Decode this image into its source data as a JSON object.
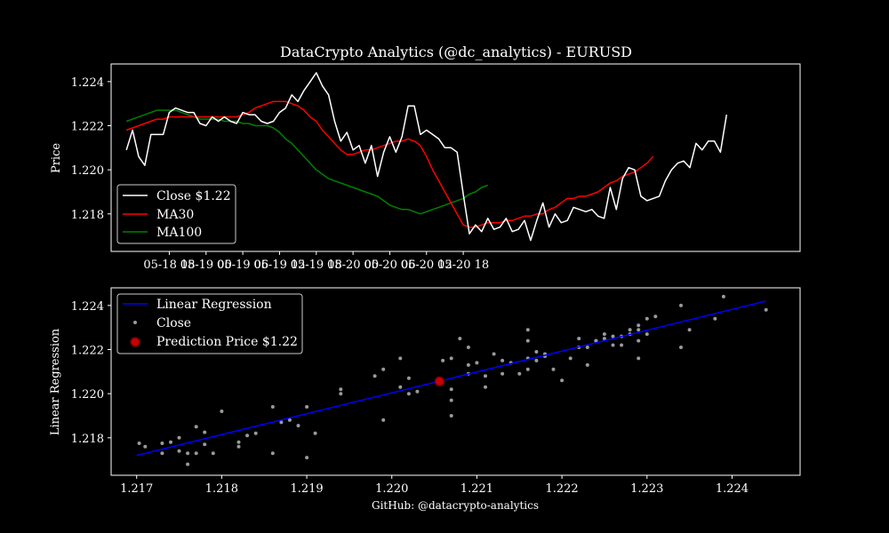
{
  "title": "DataCrypto Analytics (@dc_analytics) - EURUSD",
  "footer": "GitHub: @datacrypto-analytics",
  "colors": {
    "background": "#000000",
    "axes": "#ffffff",
    "close": "#ffffff",
    "ma30": "#ff0000",
    "ma100": "#008000",
    "regression": "#0000ff",
    "scatter": "#9a9a9a",
    "prediction": "#cc0000"
  },
  "chart_data": [
    {
      "type": "line",
      "ylabel": "Price",
      "xlabel": "",
      "x_tick_labels": [
        "05-18 18",
        "05-19 00",
        "05-19 06",
        "05-19 12",
        "05-19 18",
        "05-20 00",
        "05-20 06",
        "05-20 12",
        "05-20 18"
      ],
      "y_tick_labels": [
        "1.218",
        "1.220",
        "1.222",
        "1.224"
      ],
      "y_ticks": [
        1.218,
        1.22,
        1.222,
        1.224
      ],
      "xlim": [
        -9.5,
        103
      ],
      "ylim": [
        1.2163,
        1.2248
      ],
      "x_unit": "hours since 05-18 18:00",
      "grid": false,
      "legend_position": "lower-left",
      "legend": [
        "Close $1.22",
        "MA30",
        "MA100"
      ],
      "series": [
        {
          "name": "Close $1.22",
          "start_hour": -7,
          "step_hours": 1,
          "values": [
            1.2209,
            1.2218,
            1.2206,
            1.2202,
            1.2216,
            1.2216,
            1.2216,
            1.2226,
            1.2228,
            1.2227,
            1.2226,
            1.2226,
            1.2221,
            1.222,
            1.2224,
            1.2222,
            1.2224,
            1.2222,
            1.2221,
            1.2226,
            1.2225,
            1.2225,
            1.2222,
            1.2221,
            1.2222,
            1.2226,
            1.2228,
            1.2234,
            1.2231,
            1.2236,
            1.224,
            1.2244,
            1.2238,
            1.2234,
            1.2222,
            1.2213,
            1.2217,
            1.2209,
            1.2211,
            1.2203,
            1.2211,
            1.2197,
            1.2208,
            1.2215,
            1.2208,
            1.2215,
            1.2229,
            1.2229,
            1.2216,
            1.2218,
            1.2216,
            1.2214,
            1.221,
            1.221,
            1.2208,
            1.2189,
            1.2171,
            1.2175,
            1.2172,
            1.2178,
            1.2173,
            1.2174,
            1.2178,
            1.2172,
            1.2173,
            1.2177,
            1.2168,
            1.2177,
            1.2185,
            1.2174,
            1.218,
            1.2176,
            1.2177,
            1.2183,
            1.2182,
            1.2181,
            1.2182,
            1.2179,
            1.2178,
            1.2192,
            1.2182,
            1.2196,
            1.2201,
            1.22,
            1.2188,
            1.2186,
            1.2187,
            1.2188,
            1.2195,
            1.22,
            1.2203,
            1.2204,
            1.2201,
            1.2212,
            1.2209,
            1.2213,
            1.2213,
            1.2208,
            1.2225
          ]
        },
        {
          "name": "MA30",
          "start_hour": -7,
          "step_hours": 1,
          "values": [
            1.2218,
            1.2219,
            1.222,
            1.2221,
            1.2222,
            1.2223,
            1.2223,
            1.2224,
            1.2224,
            1.2224,
            1.2224,
            1.2224,
            1.2224,
            1.2224,
            1.2224,
            1.2224,
            1.2224,
            1.2224,
            1.2224,
            1.2225,
            1.2226,
            1.2228,
            1.2229,
            1.223,
            1.2231,
            1.2231,
            1.2231,
            1.223,
            1.2229,
            1.2227,
            1.2224,
            1.2222,
            1.2218,
            1.2215,
            1.2212,
            1.2209,
            1.2207,
            1.2207,
            1.2208,
            1.2209,
            1.2209,
            1.221,
            1.2211,
            1.2212,
            1.2213,
            1.2213,
            1.2214,
            1.2213,
            1.2211,
            1.2206,
            1.22,
            1.2195,
            1.219,
            1.2185,
            1.218,
            1.2175,
            1.2174,
            1.2174,
            1.2175,
            1.2176,
            1.2176,
            1.2176,
            1.2177,
            1.2177,
            1.2178,
            1.2179,
            1.2179,
            1.218,
            1.218,
            1.2182,
            1.2183,
            1.2185,
            1.2187,
            1.2187,
            1.2188,
            1.2188,
            1.2189,
            1.219,
            1.2192,
            1.2194,
            1.2195,
            1.2197,
            1.2198,
            1.2199,
            1.2201,
            1.2203,
            1.2206
          ]
        },
        {
          "name": "MA100",
          "start_hour": -7,
          "step_hours": 1,
          "values": [
            1.2222,
            1.2223,
            1.2224,
            1.2225,
            1.2226,
            1.2227,
            1.2227,
            1.2227,
            1.2227,
            1.2226,
            1.2225,
            1.2224,
            1.2223,
            1.2223,
            1.2223,
            1.2223,
            1.2222,
            1.2222,
            1.2222,
            1.2221,
            1.2221,
            1.222,
            1.222,
            1.222,
            1.2219,
            1.2217,
            1.2214,
            1.2212,
            1.2209,
            1.2206,
            1.2203,
            1.22,
            1.2198,
            1.2196,
            1.2195,
            1.2194,
            1.2193,
            1.2192,
            1.2191,
            1.219,
            1.2189,
            1.2188,
            1.2186,
            1.2184,
            1.2183,
            1.2182,
            1.2182,
            1.2181,
            1.218,
            1.2181,
            1.2182,
            1.2183,
            1.2184,
            1.2185,
            1.2186,
            1.2187,
            1.2189,
            1.219,
            1.2192,
            1.2193
          ]
        }
      ]
    },
    {
      "type": "scatter",
      "ylabel": "Linear Regression",
      "xlabel": "GitHub: @datacrypto-analytics",
      "x_ticks": [
        1.217,
        1.218,
        1.219,
        1.22,
        1.221,
        1.222,
        1.223,
        1.224
      ],
      "x_tick_labels": [
        "1.217",
        "1.218",
        "1.219",
        "1.220",
        "1.221",
        "1.222",
        "1.223",
        "1.224"
      ],
      "y_ticks": [
        1.218,
        1.22,
        1.222,
        1.224
      ],
      "y_tick_labels": [
        "1.218",
        "1.220",
        "1.222",
        "1.224"
      ],
      "xlim": [
        1.2167,
        1.2248
      ],
      "ylim": [
        1.2163,
        1.2248
      ],
      "grid": false,
      "legend_position": "upper-left",
      "legend": [
        "Linear Regression",
        "Close",
        "Prediction Price $1.22"
      ],
      "regression_line": {
        "name": "Linear Regression",
        "x": [
          1.217,
          1.2244
        ],
        "y": [
          1.2172,
          1.2242
        ]
      },
      "prediction": {
        "name": "Prediction Price $1.22",
        "x": 1.22056,
        "y": 1.22056
      },
      "points": [
        [
          1.21703,
          1.21775
        ],
        [
          1.2171,
          1.2176
        ],
        [
          1.2173,
          1.2173
        ],
        [
          1.2173,
          1.21775
        ],
        [
          1.2174,
          1.2178
        ],
        [
          1.2175,
          1.2174
        ],
        [
          1.2175,
          1.218
        ],
        [
          1.2176,
          1.2173
        ],
        [
          1.2176,
          1.2168
        ],
        [
          1.2177,
          1.2185
        ],
        [
          1.2177,
          1.2173
        ],
        [
          1.2178,
          1.2177
        ],
        [
          1.2178,
          1.21825
        ],
        [
          1.2179,
          1.2173
        ],
        [
          1.218,
          1.2192
        ],
        [
          1.2182,
          1.2176
        ],
        [
          1.2182,
          1.2178
        ],
        [
          1.2183,
          1.2181
        ],
        [
          1.2184,
          1.2182
        ],
        [
          1.2186,
          1.2194
        ],
        [
          1.2186,
          1.2173
        ],
        [
          1.2187,
          1.2187
        ],
        [
          1.2188,
          1.2188
        ],
        [
          1.2189,
          1.21855
        ],
        [
          1.219,
          1.2194
        ],
        [
          1.219,
          1.2171
        ],
        [
          1.2191,
          1.2182
        ],
        [
          1.2194,
          1.22
        ],
        [
          1.2194,
          1.2202
        ],
        [
          1.2198,
          1.2208
        ],
        [
          1.2199,
          1.2188
        ],
        [
          1.2199,
          1.2211
        ],
        [
          1.2201,
          1.2216
        ],
        [
          1.2201,
          1.2203
        ],
        [
          1.2202,
          1.22
        ],
        [
          1.2202,
          1.2207
        ],
        [
          1.2203,
          1.2201
        ],
        [
          1.2206,
          1.2215
        ],
        [
          1.2207,
          1.2197
        ],
        [
          1.2207,
          1.2202
        ],
        [
          1.2207,
          1.219
        ],
        [
          1.2207,
          1.2216
        ],
        [
          1.2208,
          1.2225
        ],
        [
          1.2209,
          1.2221
        ],
        [
          1.2209,
          1.2213
        ],
        [
          1.2209,
          1.2209
        ],
        [
          1.221,
          1.2214
        ],
        [
          1.2211,
          1.2208
        ],
        [
          1.2211,
          1.2203
        ],
        [
          1.2212,
          1.2218
        ],
        [
          1.2213,
          1.2215
        ],
        [
          1.2213,
          1.2209
        ],
        [
          1.2214,
          1.2214
        ],
        [
          1.2215,
          1.2209
        ],
        [
          1.2216,
          1.2216
        ],
        [
          1.2216,
          1.2211
        ],
        [
          1.2216,
          1.2224
        ],
        [
          1.2216,
          1.2229
        ],
        [
          1.2217,
          1.2219
        ],
        [
          1.2217,
          1.2215
        ],
        [
          1.2218,
          1.2217
        ],
        [
          1.2218,
          1.2218
        ],
        [
          1.2219,
          1.2211
        ],
        [
          1.222,
          1.2206
        ],
        [
          1.2221,
          1.2216
        ],
        [
          1.2222,
          1.2221
        ],
        [
          1.2222,
          1.2225
        ],
        [
          1.2223,
          1.2221
        ],
        [
          1.2223,
          1.2213
        ],
        [
          1.2224,
          1.2224
        ],
        [
          1.2224,
          1.2224
        ],
        [
          1.2225,
          1.2225
        ],
        [
          1.2225,
          1.2227
        ],
        [
          1.2226,
          1.2222
        ],
        [
          1.2226,
          1.2226
        ],
        [
          1.2227,
          1.2222
        ],
        [
          1.2227,
          1.2226
        ],
        [
          1.2228,
          1.2229
        ],
        [
          1.2228,
          1.2227
        ],
        [
          1.2229,
          1.2231
        ],
        [
          1.2229,
          1.2229
        ],
        [
          1.2229,
          1.2216
        ],
        [
          1.2229,
          1.2224
        ],
        [
          1.223,
          1.2234
        ],
        [
          1.223,
          1.2227
        ],
        [
          1.2231,
          1.2235
        ],
        [
          1.2234,
          1.2221
        ],
        [
          1.2234,
          1.224
        ],
        [
          1.2235,
          1.2229
        ],
        [
          1.2238,
          1.2234
        ],
        [
          1.2239,
          1.2244
        ],
        [
          1.2244,
          1.2238
        ]
      ]
    }
  ]
}
